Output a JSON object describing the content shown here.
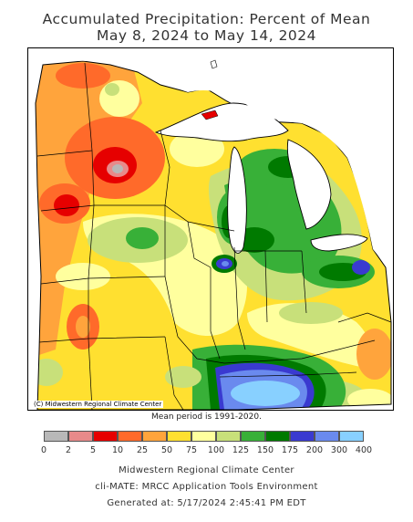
{
  "header": {
    "title_line1": "Accumulated Precipitation: Percent of Mean",
    "title_line2": "May 8, 2024 to May 14, 2024"
  },
  "map": {
    "copyright": "(C) Midwestern Regional Climate Center",
    "mean_period": "Mean period is 1991-2020."
  },
  "legend": {
    "bins": [
      {
        "color": "#b8b8b8"
      },
      {
        "color": "#e88a8a"
      },
      {
        "color": "#e60000"
      },
      {
        "color": "#ff6a2a"
      },
      {
        "color": "#ffa43c"
      },
      {
        "color": "#ffe030"
      },
      {
        "color": "#ffff9e"
      },
      {
        "color": "#c8e07a"
      },
      {
        "color": "#38b038"
      },
      {
        "color": "#007a00"
      },
      {
        "color": "#3a3ad0"
      },
      {
        "color": "#6a8aee"
      },
      {
        "color": "#88d0ff"
      }
    ],
    "labels": [
      "0",
      "2",
      "5",
      "10",
      "25",
      "50",
      "75",
      "100",
      "125",
      "150",
      "175",
      "200",
      "300",
      "400"
    ]
  },
  "footer": {
    "line1": "Midwestern Regional Climate Center",
    "line2": "cli-MATE: MRCC Application Tools Environment",
    "line3": "Generated at: 5/17/2024 2:45:41 PM EDT"
  }
}
